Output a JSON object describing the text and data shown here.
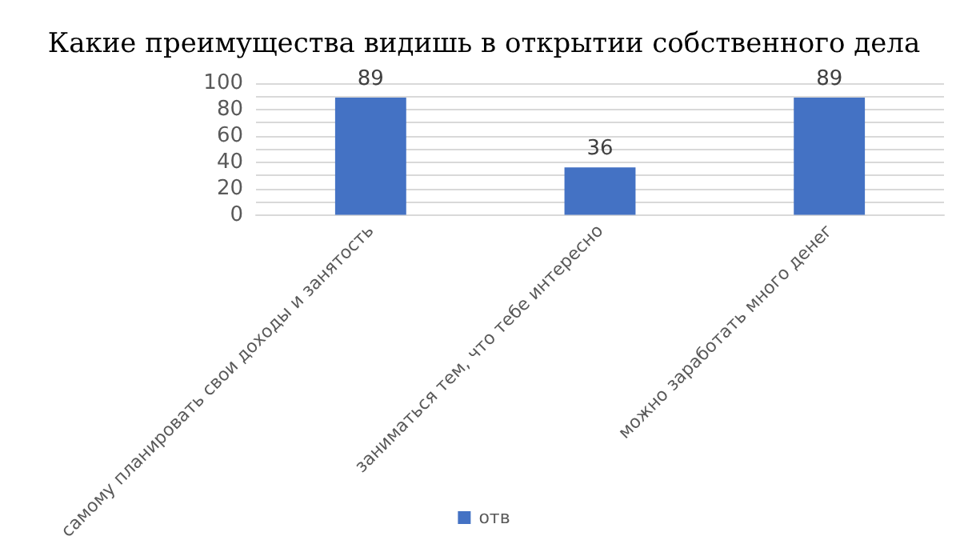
{
  "chart_data": {
    "type": "bar",
    "title": "Какие преимущества видишь в открытии собственного дела",
    "categories": [
      "самому планировать свои доходы и занятость",
      "заниматься тем, что тебе интересно",
      "можно заработать много денег"
    ],
    "series": [
      {
        "name": "отв",
        "color": "#4472c4",
        "values": [
          89,
          36,
          89
        ]
      }
    ],
    "data_labels": true,
    "ylim": [
      0,
      100
    ],
    "yticks": [
      0,
      {
        "value": 10,
        "label": null
      },
      20,
      {
        "value": 30,
        "label": null
      },
      40,
      {
        "value": 50,
        "label": null
      },
      60,
      {
        "value": 70,
        "label": null
      },
      80,
      {
        "value": 90,
        "label": null
      },
      100
    ],
    "grid": "y",
    "legend": "bottom"
  }
}
